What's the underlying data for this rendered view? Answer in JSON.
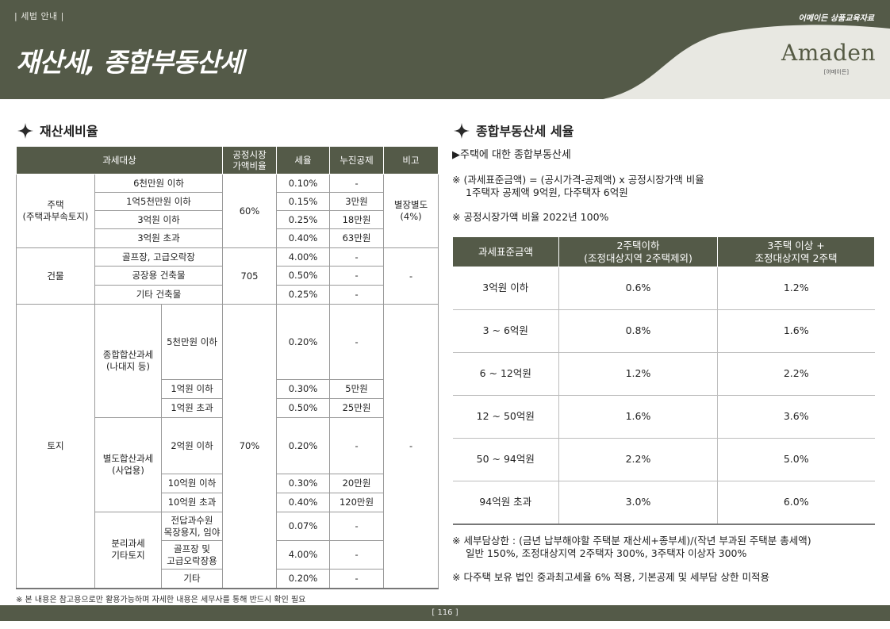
{
  "header": {
    "section_label": "| 세법 안내 |",
    "top_right_label": "어메이든 상품교육자료",
    "page_title": "재산세, 종합부동산세",
    "logo": "Amaden",
    "logo_sub": "[어메이든]"
  },
  "left_section": {
    "title": "재산세비율",
    "table": {
      "headers": [
        "과세대상",
        "공정시장\n가액비율",
        "세율",
        "누진공제",
        "비고"
      ],
      "housing": {
        "category": "주택\n(주택과부속토지)",
        "ratio": "60%",
        "remark": "별장별도\n(4%)",
        "rows": [
          {
            "bracket": "6천만원 이하",
            "rate": "0.10%",
            "deduction": "-"
          },
          {
            "bracket": "1억5천만원 이하",
            "rate": "0.15%",
            "deduction": "3만원"
          },
          {
            "bracket": "3억원 이하",
            "rate": "0.25%",
            "deduction": "18만원"
          },
          {
            "bracket": "3억원 초과",
            "rate": "0.40%",
            "deduction": "63만원"
          }
        ]
      },
      "building": {
        "category": "건물",
        "ratio": "705",
        "remark": "-",
        "rows": [
          {
            "bracket": "골프장, 고급오락장",
            "rate": "4.00%",
            "deduction": "-"
          },
          {
            "bracket": "공장용 건축물",
            "rate": "0.50%",
            "deduction": "-"
          },
          {
            "bracket": "기타 건축물",
            "rate": "0.25%",
            "deduction": "-"
          }
        ]
      },
      "land": {
        "category": "토지",
        "ratio": "70%",
        "remark": "-",
        "comprehensive": {
          "label": "종합합산과세\n(나대지 등)",
          "rows": [
            {
              "bracket": "5천만원 이하",
              "rate": "0.20%",
              "deduction": "-"
            },
            {
              "bracket": "1억원 이하",
              "rate": "0.30%",
              "deduction": "5만원"
            },
            {
              "bracket": "1억원 초과",
              "rate": "0.50%",
              "deduction": "25만원"
            }
          ]
        },
        "separate": {
          "label": "별도합산과세\n(사업용)",
          "rows": [
            {
              "bracket": "2억원 이하",
              "rate": "0.20%",
              "deduction": "-"
            },
            {
              "bracket": "10억원 이하",
              "rate": "0.30%",
              "deduction": "20만원"
            },
            {
              "bracket": "10억원 초과",
              "rate": "0.40%",
              "deduction": "120만원"
            }
          ]
        },
        "split": {
          "label": "분리과세\n기타토지",
          "rows": [
            {
              "bracket": "전답과수원\n목장용지, 임야",
              "rate": "0.07%",
              "deduction": "-"
            },
            {
              "bracket": "골프장 및\n고급오락장용",
              "rate": "4.00%",
              "deduction": "-"
            },
            {
              "bracket": "기타",
              "rate": "0.20%",
              "deduction": "-"
            }
          ]
        }
      }
    },
    "footnote": "※ 본 내용은 참고용으로만 활용가능하며 자세한 내용은 세무사를 통해 반드시 확인 필요"
  },
  "right_section": {
    "title": "종합부동산세 세율",
    "subtitle": "▶주택에 대한 종합부동산세",
    "note1_line1": "※ (과세표준금액) = (공시가격-공제액) x 공정시장가액 비율",
    "note1_line2": "1주택자 공제액 9억원, 다주택자 6억원",
    "note2": "※ 공정시장가액 비율 2022년 100%",
    "table": {
      "headers": [
        "과세표준금액",
        "2주택이하\n(조정대상지역 2주택제외)",
        "3주택 이상 +\n조정대상지역 2주택"
      ],
      "rows": [
        {
          "range": "3억원 이하",
          "rate_a": "0.6%",
          "rate_b": "1.2%"
        },
        {
          "range": "3 ~ 6억원",
          "rate_a": "0.8%",
          "rate_b": "1.6%"
        },
        {
          "range": "6 ~ 12억원",
          "rate_a": "1.2%",
          "rate_b": "2.2%"
        },
        {
          "range": "12 ~ 50억원",
          "rate_a": "1.6%",
          "rate_b": "3.6%"
        },
        {
          "range": "50 ~ 94억원",
          "rate_a": "2.2%",
          "rate_b": "5.0%"
        },
        {
          "range": "94억원 초과",
          "rate_a": "3.0%",
          "rate_b": "6.0%"
        }
      ]
    },
    "note3_line1": "※ 세부담상한 : (금년 납부해야할 주택분 재산세+종부세)/(작년 부과된 주택분 총세액)",
    "note3_line2": "일반 150%, 조정대상지역 2주택자 300%, 3주택자 이상자 300%",
    "note4": "※ 다주택 보유 법인 중과최고세율 6% 적용, 기본공제 및 세부담 상한 미적용"
  },
  "footer": {
    "page_number": "[ 116 ]"
  },
  "colors": {
    "brand": "#545a48",
    "header_curve": "#e8e8e2"
  }
}
